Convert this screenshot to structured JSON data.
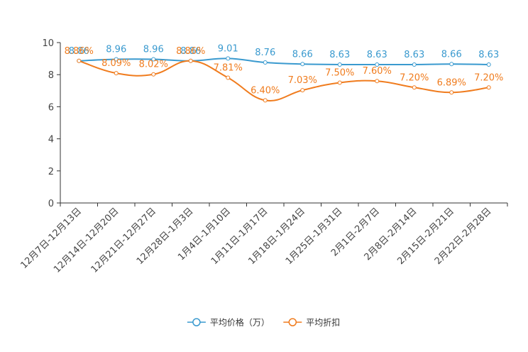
{
  "chart_data": {
    "type": "line",
    "title": "",
    "xlabel": "",
    "ylabel": "",
    "ylim": [
      0,
      10
    ],
    "yticks": [
      0,
      2,
      4,
      6,
      8,
      10
    ],
    "grid": false,
    "legend_position": "bottom-center",
    "categories": [
      "12月7日-12月13日",
      "12月14日-12月20日",
      "12月21日-12月27日",
      "12月28日-1月3日",
      "1月4日-1月10日",
      "1月11日-1月17日",
      "1月18日-1月24日",
      "1月25日-1月31日",
      "2月1日-2月7日",
      "2月8日-2月14日",
      "2月15日-2月21日",
      "2月22日-2月28日"
    ],
    "series": [
      {
        "name": "平均价格（万）",
        "color": "#3A9ACF",
        "values": [
          8.86,
          8.96,
          8.96,
          8.86,
          9.01,
          8.76,
          8.66,
          8.63,
          8.63,
          8.63,
          8.66,
          8.63
        ],
        "labels": [
          "8.86",
          "8.96",
          "8.96",
          "8.86",
          "9.01",
          "8.76",
          "8.66",
          "8.63",
          "8.63",
          "8.63",
          "8.66",
          "8.63"
        ]
      },
      {
        "name": "平均折扣",
        "color": "#F07C1E",
        "values": [
          8.86,
          8.09,
          8.02,
          8.86,
          7.81,
          6.4,
          7.03,
          7.5,
          7.6,
          7.2,
          6.89,
          7.2
        ],
        "labels": [
          "8.86%",
          "8.09%",
          "8.02%",
          "8.86%",
          "7.81%",
          "6.40%",
          "7.03%",
          "7.50%",
          "7.60%",
          "7.20%",
          "6.89%",
          "7.20%"
        ]
      }
    ]
  }
}
